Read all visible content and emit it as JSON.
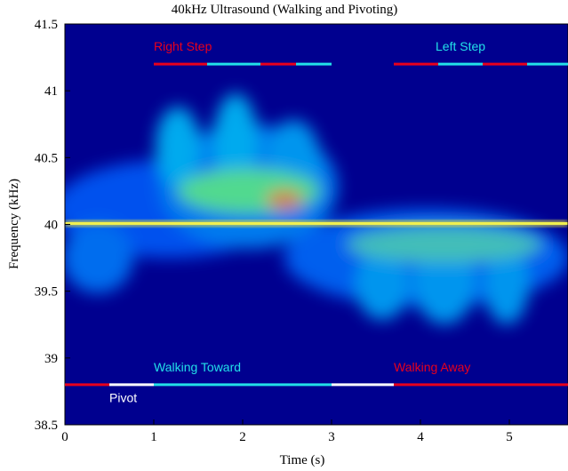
{
  "chart_data": {
    "type": "spectrogram",
    "title": "40kHz Ultrasound (Walking and Pivoting)",
    "x_label": "Time (s)",
    "y_label": "Frequency (kHz)",
    "xlim": [
      0,
      5.66
    ],
    "ylim": [
      38.5,
      41.5
    ],
    "xticks": [
      0,
      1,
      2,
      3,
      4,
      5
    ],
    "yticks": [
      38.5,
      39,
      39.5,
      40,
      40.5,
      41,
      41.5
    ],
    "tracks": [
      {
        "y": 41.2,
        "segments": [
          {
            "start": 1.0,
            "end": 1.6,
            "color": "#e8001c"
          },
          {
            "start": 1.6,
            "end": 2.2,
            "color": "#22e0e8"
          },
          {
            "start": 2.2,
            "end": 2.6,
            "color": "#e8001c"
          },
          {
            "start": 2.6,
            "end": 3.0,
            "color": "#22e0e8"
          },
          {
            "start": 3.7,
            "end": 4.2,
            "color": "#e8001c"
          },
          {
            "start": 4.2,
            "end": 4.7,
            "color": "#22e0e8"
          },
          {
            "start": 4.7,
            "end": 5.2,
            "color": "#e8001c"
          },
          {
            "start": 5.2,
            "end": 5.66,
            "color": "#22e0e8"
          }
        ]
      },
      {
        "y": 38.8,
        "segments": [
          {
            "start": 0,
            "end": 0.5,
            "color": "#e8001c"
          },
          {
            "start": 0.5,
            "end": 1.0,
            "color": "#ffffff"
          },
          {
            "start": 1.0,
            "end": 3.0,
            "color": "#22e0e8"
          },
          {
            "start": 3.0,
            "end": 3.7,
            "color": "#ffffff"
          },
          {
            "start": 3.7,
            "end": 5.66,
            "color": "#e8001c"
          }
        ]
      }
    ],
    "annotations": [
      {
        "text": "Right Step",
        "x": 1.0,
        "y": 41.3,
        "color": "#e8001c"
      },
      {
        "text": "Left Step",
        "x": 4.17,
        "y": 41.3,
        "color": "#22e0e8"
      },
      {
        "text": "Walking Toward",
        "x": 1.0,
        "y": 38.9,
        "color": "#22e0e8"
      },
      {
        "text": "Pivot",
        "x": 0.5,
        "y": 38.67,
        "color": "#ffffff"
      },
      {
        "text": "Walking Away",
        "x": 3.7,
        "y": 38.9,
        "color": "#e8001c"
      }
    ]
  }
}
